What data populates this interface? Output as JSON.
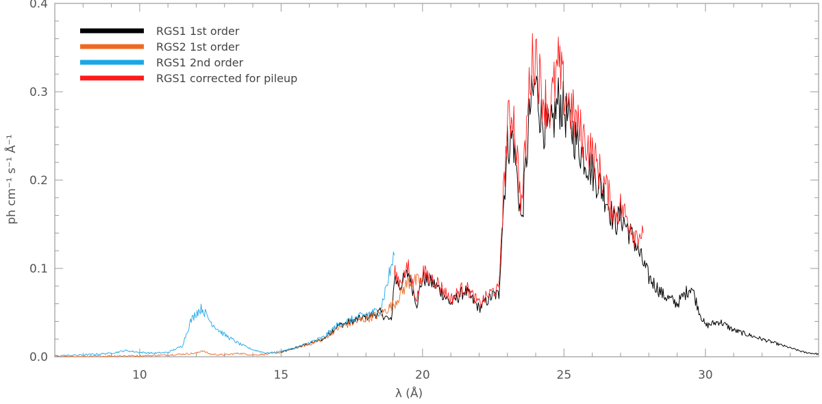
{
  "chart_data": {
    "type": "line",
    "xlabel": "λ (Å)",
    "ylabel": "ph cm⁻¹ s⁻¹ Å⁻¹",
    "xlim": [
      7,
      34
    ],
    "ylim": [
      0,
      0.4
    ],
    "x_ticks": [
      10,
      15,
      20,
      25,
      30
    ],
    "x_tick_labels": [
      "10",
      "15",
      "20",
      "25",
      "30"
    ],
    "y_ticks": [
      0,
      0.1,
      0.2,
      0.3,
      0.4
    ],
    "y_tick_labels": [
      "0.0",
      "0.1",
      "0.2",
      "0.3",
      "0.4"
    ],
    "grid": false,
    "legend_position": "top-left",
    "series": [
      {
        "name": "RGS1 1st order",
        "color": "#000000",
        "x": [
          15.0,
          15.5,
          16.0,
          16.5,
          17.0,
          17.5,
          18.0,
          18.5,
          18.9,
          19.0,
          19.2,
          19.5,
          19.8,
          20.0,
          20.5,
          21.0,
          21.5,
          22.0,
          22.5,
          22.7,
          22.8,
          23.0,
          23.2,
          23.5,
          23.8,
          24.0,
          24.2,
          24.5,
          24.8,
          25.0,
          25.5,
          26.0,
          26.5,
          26.8,
          27.0,
          27.5,
          28.0,
          28.5,
          29.0,
          29.5,
          29.8,
          30.0,
          30.5,
          31.0,
          31.5,
          32.0,
          32.5,
          33.0,
          33.5,
          34.0
        ],
        "y": [
          0.005,
          0.01,
          0.015,
          0.02,
          0.035,
          0.04,
          0.045,
          0.05,
          0.04,
          0.09,
          0.08,
          0.095,
          0.06,
          0.09,
          0.08,
          0.06,
          0.075,
          0.055,
          0.07,
          0.07,
          0.14,
          0.24,
          0.25,
          0.15,
          0.28,
          0.31,
          0.27,
          0.25,
          0.29,
          0.28,
          0.24,
          0.21,
          0.18,
          0.15,
          0.16,
          0.13,
          0.09,
          0.07,
          0.06,
          0.08,
          0.05,
          0.035,
          0.04,
          0.03,
          0.025,
          0.02,
          0.015,
          0.01,
          0.005,
          0.003
        ]
      },
      {
        "name": "RGS2 1st order",
        "color": "#ee6a22",
        "x": [
          7.0,
          8.0,
          9.0,
          10.0,
          11.0,
          11.5,
          12.0,
          12.2,
          12.5,
          13.0,
          13.5,
          14.0,
          14.5,
          15.0,
          15.5,
          16.0,
          16.5,
          17.0,
          17.5,
          18.0,
          18.5,
          19.0,
          19.5,
          20.0
        ],
        "y": [
          0.0,
          0.0,
          0.001,
          0.001,
          0.002,
          0.003,
          0.004,
          0.007,
          0.003,
          0.002,
          0.004,
          0.002,
          0.003,
          0.005,
          0.01,
          0.014,
          0.02,
          0.032,
          0.038,
          0.043,
          0.048,
          0.06,
          0.085,
          0.085
        ]
      },
      {
        "name": "RGS1 2nd order",
        "color": "#1aa7e8",
        "x": [
          7.0,
          8.0,
          9.0,
          9.5,
          10.0,
          10.5,
          11.0,
          11.5,
          11.8,
          12.0,
          12.2,
          12.5,
          12.8,
          13.0,
          13.5,
          14.0,
          14.5,
          15.0,
          15.5,
          16.0,
          16.5,
          17.0,
          17.5,
          18.0,
          18.5,
          19.0
        ],
        "y": [
          0.001,
          0.002,
          0.004,
          0.007,
          0.005,
          0.004,
          0.005,
          0.012,
          0.04,
          0.05,
          0.055,
          0.04,
          0.03,
          0.025,
          0.015,
          0.008,
          0.004,
          0.006,
          0.01,
          0.016,
          0.022,
          0.036,
          0.042,
          0.048,
          0.052,
          0.115
        ]
      },
      {
        "name": "RGS1 corrected for pileup",
        "color": "#ff1a1a",
        "x": [
          19.0,
          19.2,
          19.5,
          19.8,
          20.0,
          20.5,
          21.0,
          21.5,
          22.0,
          22.5,
          22.7,
          22.8,
          23.0,
          23.2,
          23.5,
          23.8,
          24.0,
          24.2,
          24.5,
          24.8,
          25.0,
          25.5,
          26.0,
          26.5,
          26.8,
          27.0,
          27.5,
          27.8
        ],
        "y": [
          0.095,
          0.085,
          0.1,
          0.065,
          0.095,
          0.085,
          0.065,
          0.08,
          0.06,
          0.075,
          0.075,
          0.15,
          0.26,
          0.28,
          0.17,
          0.32,
          0.35,
          0.3,
          0.28,
          0.33,
          0.3,
          0.26,
          0.23,
          0.19,
          0.16,
          0.17,
          0.14,
          0.14
        ]
      }
    ]
  }
}
